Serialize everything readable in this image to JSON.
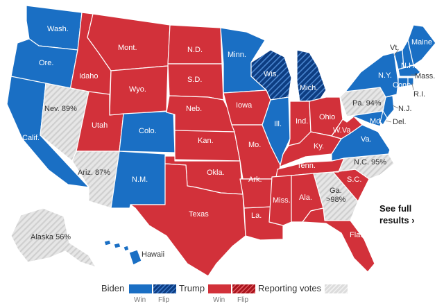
{
  "cta": {
    "line1": "See full",
    "line2": "results ›"
  },
  "legend": {
    "biden": "Biden",
    "trump": "Trump",
    "reporting": "Reporting votes",
    "win": "Win",
    "flip": "Flip"
  },
  "colors": {
    "biden_win": "#1a6fc4",
    "biden_flip": "#0d3d82",
    "trump_win": "#d2313a",
    "trump_flip": "#a8141c",
    "reporting": "#dcdcdc"
  },
  "states": {
    "wa": {
      "label": "Wash.",
      "status": "biden_win"
    },
    "or": {
      "label": "Ore.",
      "status": "biden_win"
    },
    "ca": {
      "label": "Calif.",
      "status": "biden_win"
    },
    "id": {
      "label": "Idaho",
      "status": "trump_win"
    },
    "nv": {
      "label": "Nev. 89%",
      "status": "reporting"
    },
    "mt": {
      "label": "Mont.",
      "status": "trump_win"
    },
    "wy": {
      "label": "Wyo.",
      "status": "trump_win"
    },
    "ut": {
      "label": "Utah",
      "status": "trump_win"
    },
    "az": {
      "label": "Ariz. 87%",
      "status": "reporting"
    },
    "co": {
      "label": "Colo.",
      "status": "biden_win"
    },
    "nm": {
      "label": "N.M.",
      "status": "biden_win"
    },
    "nd": {
      "label": "N.D.",
      "status": "trump_win"
    },
    "sd": {
      "label": "S.D.",
      "status": "trump_win"
    },
    "ne": {
      "label": "Neb.",
      "status": "trump_win"
    },
    "ks": {
      "label": "Kan.",
      "status": "trump_win"
    },
    "ok": {
      "label": "Okla.",
      "status": "trump_win"
    },
    "tx": {
      "label": "Texas",
      "status": "trump_win"
    },
    "mn": {
      "label": "Minn.",
      "status": "biden_win"
    },
    "ia": {
      "label": "Iowa",
      "status": "trump_win"
    },
    "mo": {
      "label": "Mo.",
      "status": "trump_win"
    },
    "ar": {
      "label": "Ark.",
      "status": "trump_win"
    },
    "la": {
      "label": "La.",
      "status": "trump_win"
    },
    "wi": {
      "label": "Wis.",
      "status": "biden_flip"
    },
    "il": {
      "label": "Ill.",
      "status": "biden_win"
    },
    "mi": {
      "label": "Mich.",
      "status": "biden_flip"
    },
    "in": {
      "label": "Ind.",
      "status": "trump_win"
    },
    "oh": {
      "label": "Ohio",
      "status": "trump_win"
    },
    "ky": {
      "label": "Ky.",
      "status": "trump_win"
    },
    "tn": {
      "label": "Tenn.",
      "status": "trump_win"
    },
    "ms": {
      "label": "Miss.",
      "status": "trump_win"
    },
    "al": {
      "label": "Ala.",
      "status": "trump_win"
    },
    "ga": {
      "label": "Ga.",
      "label2": ">98%",
      "status": "reporting"
    },
    "fl": {
      "label": "Fla.",
      "status": "trump_win"
    },
    "sc": {
      "label": "S.C.",
      "status": "trump_win"
    },
    "nc": {
      "label": "N.C. 95%",
      "status": "reporting"
    },
    "va": {
      "label": "Va.",
      "status": "biden_win"
    },
    "wv": {
      "label": "W.Va.",
      "status": "trump_win"
    },
    "pa": {
      "label": "Pa. 94%",
      "status": "reporting"
    },
    "ny": {
      "label": "N.Y.",
      "status": "biden_win"
    },
    "vt": {
      "label": "Vt.",
      "status": "biden_win"
    },
    "nh": {
      "label": "N.H.",
      "status": "biden_win"
    },
    "me": {
      "label": "Maine",
      "status": "biden_win"
    },
    "ma": {
      "label": "Mass.",
      "status": "biden_win"
    },
    "ri": {
      "label": "R.I.",
      "status": "biden_win"
    },
    "ct": {
      "label": "Conn.",
      "status": "biden_win"
    },
    "nj": {
      "label": "N.J.",
      "status": "biden_win"
    },
    "de": {
      "label": "Del.",
      "status": "biden_win"
    },
    "md": {
      "label": "Md.",
      "status": "biden_win"
    },
    "ak": {
      "label": "Alaska 56%",
      "status": "reporting"
    },
    "hi": {
      "label": "Hawaii",
      "status": "biden_win"
    }
  }
}
